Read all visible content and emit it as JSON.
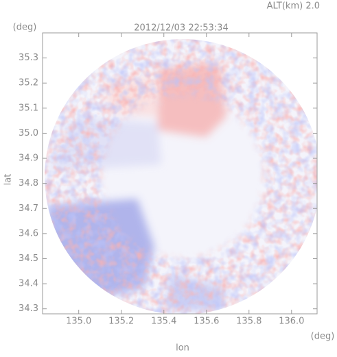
{
  "chart_data": {
    "type": "radar-image",
    "title": "2012/12/03 22:53:34",
    "annotation": "ALT(km)  2.0",
    "x_label": "lon",
    "y_label": "lat",
    "x_unit": "(deg)",
    "y_unit": "(deg)",
    "xlim": [
      134.83,
      136.12
    ],
    "ylim": [
      34.28,
      35.4
    ],
    "xticks": [
      {
        "value": 135,
        "label": "135.0"
      },
      135.2,
      135.4,
      135.6,
      135.8,
      {
        "value": 136,
        "label": "136.0"
      }
    ],
    "yticks": [
      34.3,
      34.4,
      34.5,
      34.6,
      34.7,
      34.8,
      34.9,
      {
        "value": 35,
        "label": "35.0"
      },
      35.1,
      35.2,
      35.3
    ]
  }
}
